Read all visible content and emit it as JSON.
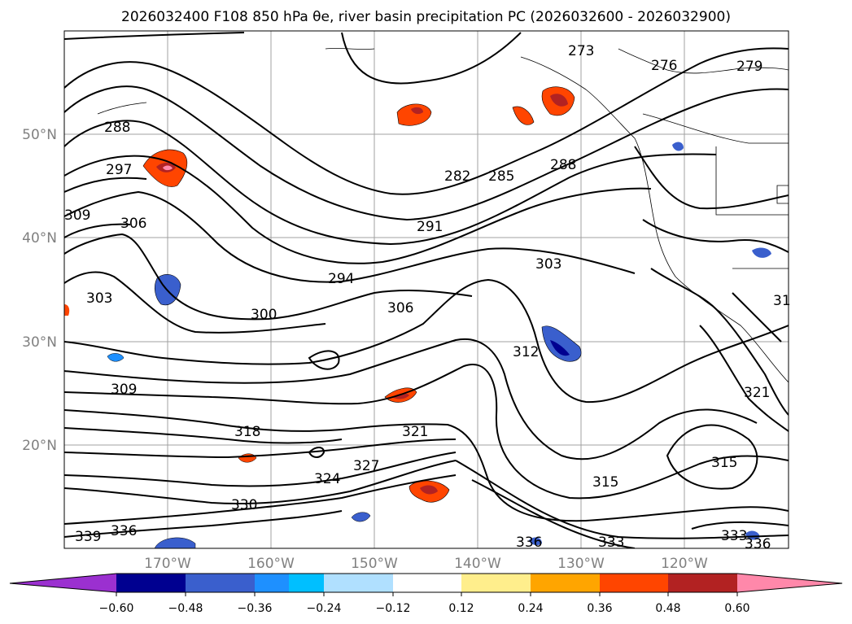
{
  "title": "2026032400 F108 850 hPa θe, river basin precipitation PC (2026032600 - 2026032900)",
  "lat_labels": [
    "50°N",
    "40°N",
    "30°N",
    "20°N"
  ],
  "lon_labels": [
    "170°W",
    "160°W",
    "150°W",
    "140°W",
    "130°W",
    "120°W"
  ],
  "contour_labels": [
    "273",
    "276",
    "279",
    "288",
    "297",
    "309",
    "306",
    "303",
    "282",
    "285",
    "288",
    "291",
    "294",
    "303",
    "300",
    "306",
    "312",
    "309",
    "318",
    "321",
    "324",
    "327",
    "330",
    "315",
    "315",
    "339",
    "336",
    "336",
    "333",
    "333",
    "336",
    "321",
    "31"
  ],
  "colorbar": {
    "colors": [
      "#9b30d0",
      "#000090",
      "#3a5fcd",
      "#1e90ff",
      "#00bfff",
      "#b0e0ff",
      "#ffffff",
      "#ffee8c",
      "#ffa500",
      "#ff4500",
      "#b22222",
      "#ff88aa"
    ],
    "tick_labels": [
      "−0.60",
      "−0.48",
      "−0.36",
      "−0.24",
      "−0.12",
      "0.12",
      "0.24",
      "0.36",
      "0.48",
      "0.60"
    ]
  }
}
